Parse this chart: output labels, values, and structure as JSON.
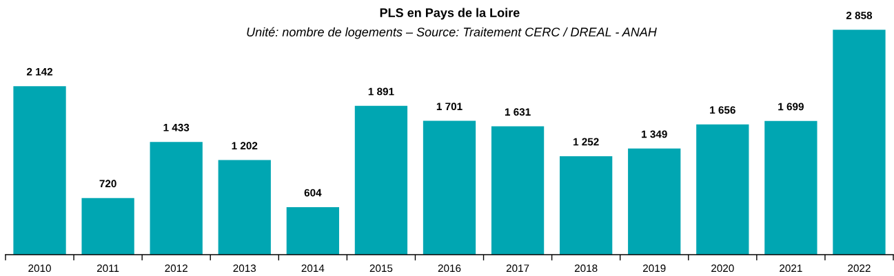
{
  "chart_data": {
    "type": "bar",
    "title": "PLS en Pays de la Loire",
    "subtitle": "Unité: nombre de logements – Source: Traitement CERC / DREAL - ANAH",
    "categories": [
      "2010",
      "2011",
      "2012",
      "2013",
      "2014",
      "2015",
      "2016",
      "2017",
      "2018",
      "2019",
      "2020",
      "2021",
      "2022"
    ],
    "values": [
      2142,
      720,
      1433,
      1202,
      604,
      1891,
      1701,
      1631,
      1252,
      1349,
      1656,
      1699,
      2858
    ],
    "value_labels": [
      "2 142",
      "720",
      "1 433",
      "1 202",
      "604",
      "1 891",
      "1 701",
      "1 631",
      "1 252",
      "1 349",
      "1 656",
      "1 699",
      "2 858"
    ],
    "color": "#00a6b2",
    "tick_labels": "x"
  }
}
